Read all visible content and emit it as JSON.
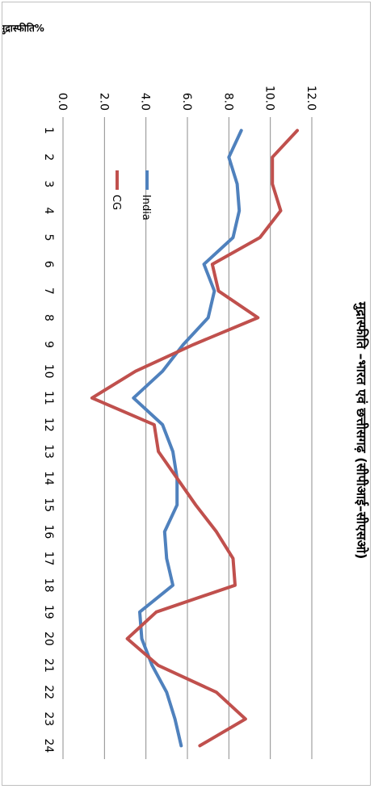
{
  "chart_data": {
    "type": "line",
    "title": "मुद्रास्फीति –भारत एवं छत्तीसगढ़ (सीपीआई–सीएसओ)",
    "xlabel": "",
    "ylabel": "मुद्रास्फीति%",
    "categories": [
      "1",
      "2",
      "3",
      "4",
      "5",
      "6",
      "7",
      "8",
      "9",
      "10",
      "11",
      "12",
      "13",
      "14",
      "15",
      "16",
      "17",
      "18",
      "19",
      "20",
      "21",
      "22",
      "23",
      "24"
    ],
    "ylim": [
      0,
      12
    ],
    "yticks": [
      "0.0",
      "2.0",
      "4.0",
      "6.0",
      "8.0",
      "10.0",
      "12.0"
    ],
    "grid": true,
    "legend": "inside-upper-left",
    "series": [
      {
        "name": "India",
        "color": "#4f81bd",
        "values": [
          8.6,
          8.0,
          8.4,
          8.5,
          8.2,
          6.8,
          7.3,
          7.0,
          5.8,
          4.8,
          3.4,
          4.8,
          5.3,
          5.5,
          5.5,
          4.9,
          5.0,
          5.3,
          3.7,
          3.8,
          4.3,
          5.0,
          5.4,
          5.7
        ]
      },
      {
        "name": "CG",
        "color": "#c0504d",
        "values": [
          11.3,
          10.1,
          10.1,
          10.5,
          9.5,
          7.2,
          7.5,
          9.4,
          6.3,
          3.5,
          1.4,
          4.4,
          4.6,
          5.5,
          6.4,
          7.4,
          8.2,
          8.3,
          4.5,
          3.1,
          4.6,
          7.4,
          8.8,
          6.6
        ]
      }
    ]
  }
}
